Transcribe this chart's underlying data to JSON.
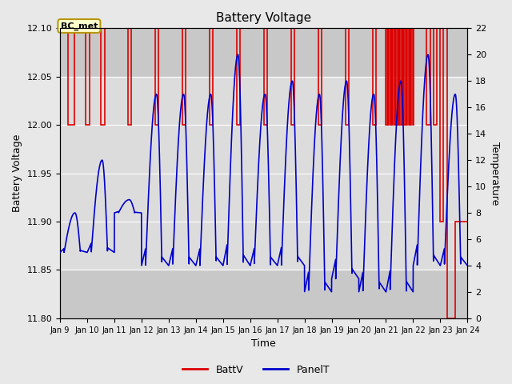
{
  "title": "Battery Voltage",
  "xlabel": "Time",
  "ylabel_left": "Battery Voltage",
  "ylabel_right": "Temperature",
  "ylim_left": [
    11.8,
    12.1
  ],
  "ylim_right": [
    0,
    22
  ],
  "xtick_labels": [
    "Jan 9",
    "Jan 10",
    "Jan 11",
    "Jan 12",
    "Jan 13",
    "Jan 14",
    "Jan 15",
    "Jan 16",
    "Jan 17",
    "Jan 18",
    "Jan 19",
    "Jan 20",
    "Jan 21",
    "Jan 22",
    "Jan 23",
    "Jan 24"
  ],
  "fig_bg_color": "#e8e8e8",
  "plot_bg_color": "#c8c8c8",
  "inner_bg_color": "#dcdcdc",
  "grid_color": "#ffffff",
  "annotation_text": "BC_met",
  "annotation_bg": "#ffffcc",
  "annotation_border": "#b8960c",
  "legend_entries": [
    "BattV",
    "PanelT"
  ],
  "batt_color": "#dd0000",
  "panel_color": "#0000cc",
  "yticks_left": [
    11.8,
    11.85,
    11.9,
    11.95,
    12.0,
    12.05,
    12.1
  ],
  "yticks_right": [
    0,
    2,
    4,
    6,
    8,
    10,
    12,
    14,
    16,
    18,
    20,
    22
  ]
}
